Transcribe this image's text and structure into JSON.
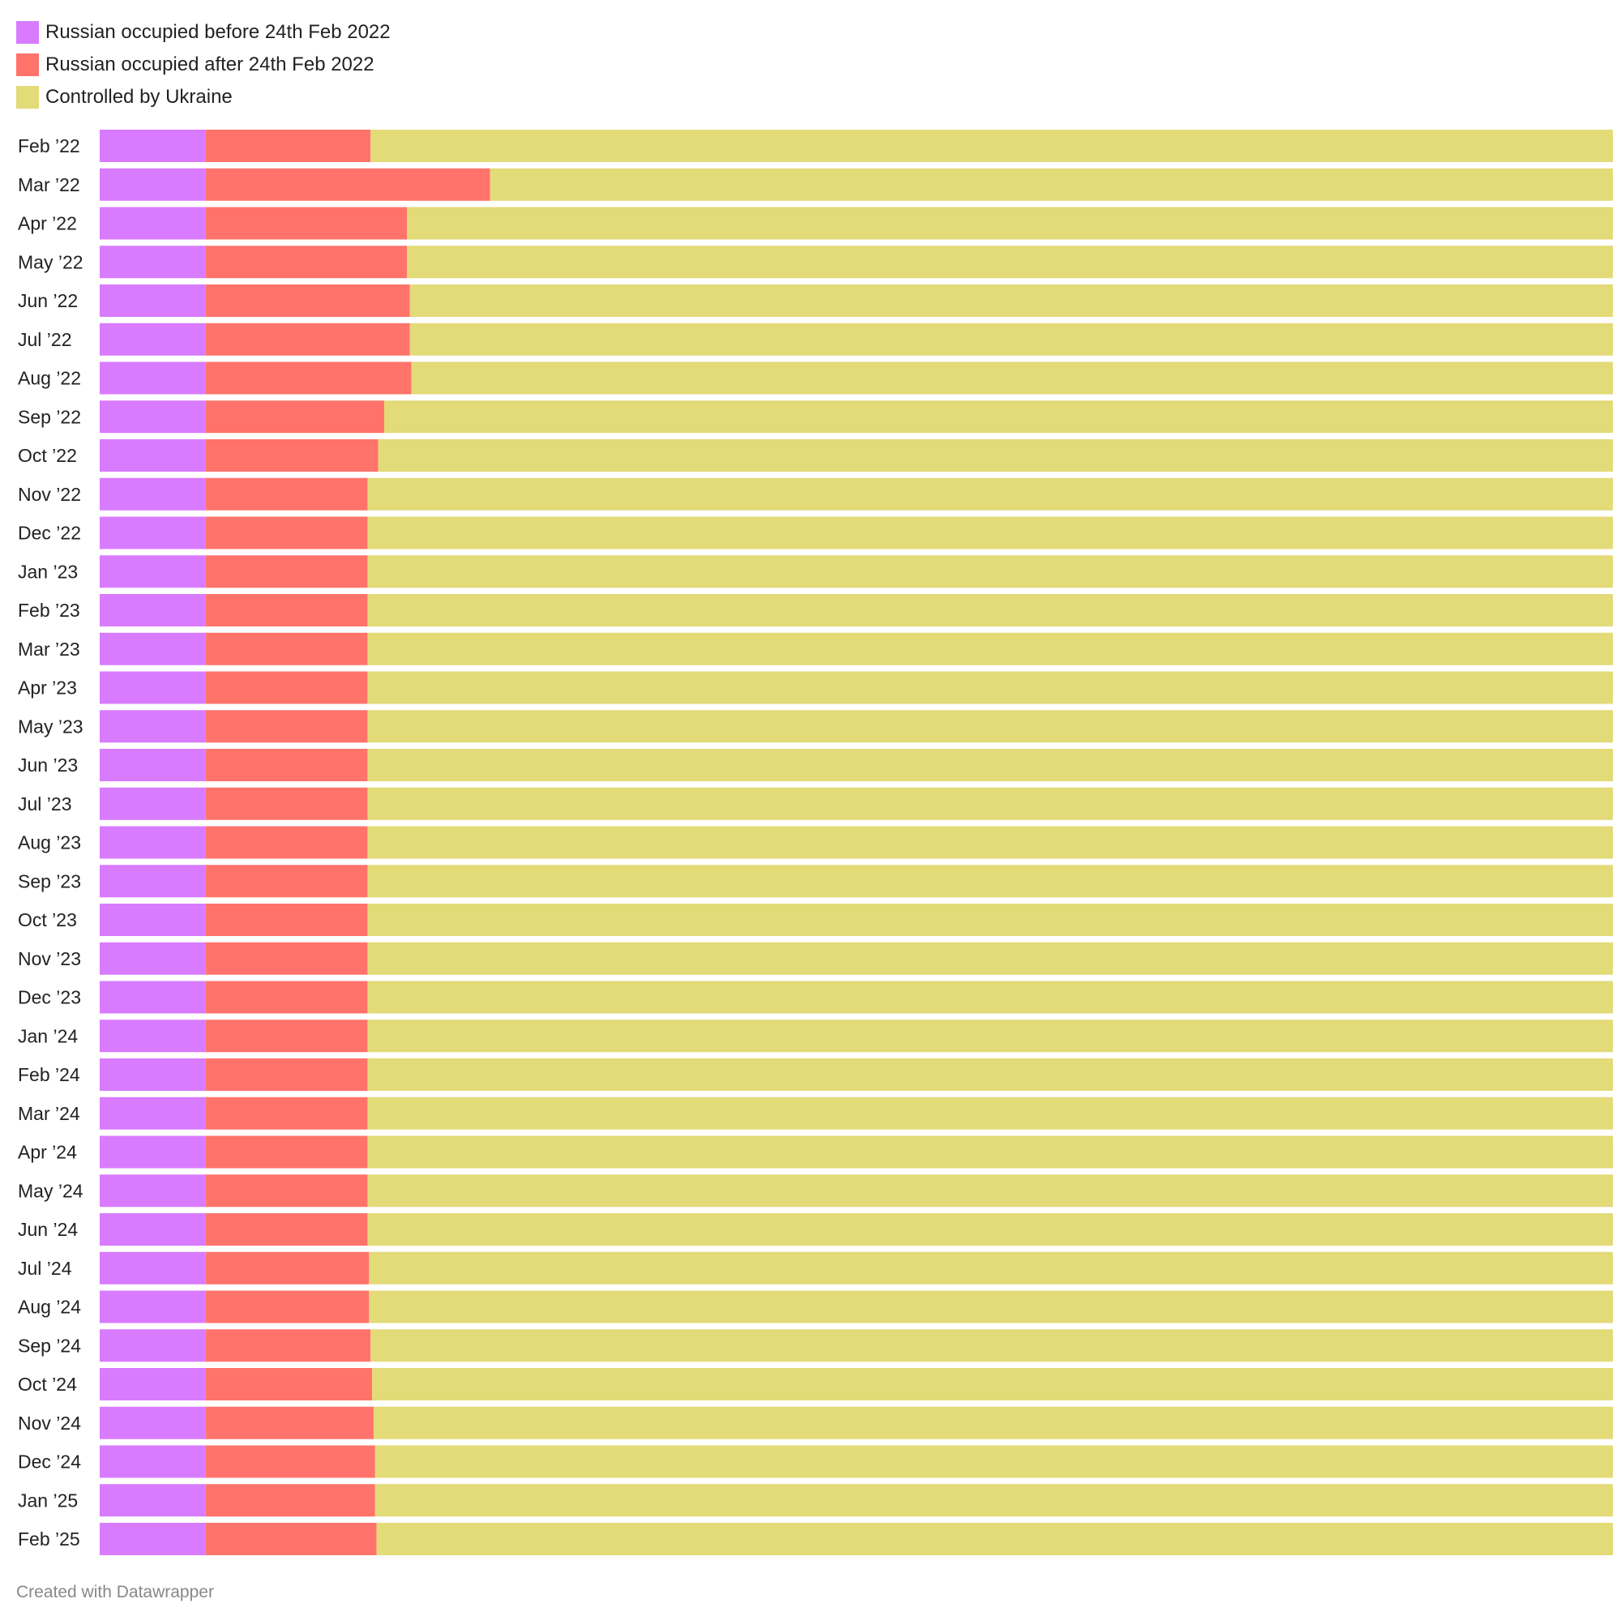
{
  "colors": {
    "before": "#d97bff",
    "after": "#ff736b",
    "ukraine": "#e3da78",
    "label_text": "#222222",
    "credit_text": "#888888"
  },
  "legend": [
    {
      "label": "Russian occupied before 24th Feb 2022",
      "color_key": "before"
    },
    {
      "label": "Russian occupied after 24th Feb 2022",
      "color_key": "after"
    },
    {
      "label": "Controlled by Ukraine",
      "color_key": "ukraine"
    }
  ],
  "credit": "Created with Datawrapper",
  "chart_data": {
    "type": "bar",
    "stacked": true,
    "orientation": "horizontal",
    "normalized": "percent",
    "categories": [
      "Feb ’22",
      "Mar ’22",
      "Apr ’22",
      "May ’22",
      "Jun ’22",
      "Jul ’22",
      "Aug ’22",
      "Sep ’22",
      "Oct ’22",
      "Nov ’22",
      "Dec ’22",
      "Jan ’23",
      "Feb ’23",
      "Mar ’23",
      "Apr ’23",
      "May ’23",
      "Jun ’23",
      "Jul ’23",
      "Aug ’23",
      "Sep ’23",
      "Oct ’23",
      "Nov ’23",
      "Dec ’23",
      "Jan ’24",
      "Feb ’24",
      "Mar ’24",
      "Apr ’24",
      "May ’24",
      "Jun ’24",
      "Jul ’24",
      "Aug ’24",
      "Sep ’24",
      "Oct ’24",
      "Nov ’24",
      "Dec ’24",
      "Jan ’25",
      "Feb ’25"
    ],
    "series": [
      {
        "name": "Russian occupied before 24th Feb 2022",
        "color_key": "before",
        "values": [
          7.0,
          7.0,
          7.0,
          7.0,
          7.0,
          7.0,
          7.0,
          7.0,
          7.0,
          7.0,
          7.0,
          7.0,
          7.0,
          7.0,
          7.0,
          7.0,
          7.0,
          7.0,
          7.0,
          7.0,
          7.0,
          7.0,
          7.0,
          7.0,
          7.0,
          7.0,
          7.0,
          7.0,
          7.0,
          7.0,
          7.0,
          7.0,
          7.0,
          7.0,
          7.0,
          7.0,
          7.0
        ]
      },
      {
        "name": "Russian occupied after 24th Feb 2022",
        "color_key": "after",
        "values": [
          10.9,
          18.8,
          13.3,
          13.3,
          13.5,
          13.5,
          13.6,
          11.8,
          11.4,
          10.7,
          10.7,
          10.7,
          10.7,
          10.7,
          10.7,
          10.7,
          10.7,
          10.7,
          10.7,
          10.7,
          10.7,
          10.7,
          10.7,
          10.7,
          10.7,
          10.7,
          10.7,
          10.7,
          10.7,
          10.8,
          10.8,
          10.9,
          11.0,
          11.1,
          11.2,
          11.2,
          11.3
        ]
      },
      {
        "name": "Controlled by Ukraine",
        "color_key": "ukraine",
        "values": [
          82.1,
          74.2,
          79.7,
          79.7,
          79.5,
          79.5,
          79.4,
          81.2,
          81.6,
          82.3,
          82.3,
          82.3,
          82.3,
          82.3,
          82.3,
          82.3,
          82.3,
          82.3,
          82.3,
          82.3,
          82.3,
          82.3,
          82.3,
          82.3,
          82.3,
          82.3,
          82.3,
          82.3,
          82.3,
          82.2,
          82.2,
          82.1,
          82.0,
          81.9,
          81.8,
          81.8,
          81.7
        ]
      }
    ],
    "xlim": [
      0,
      100
    ],
    "legend_position": "top-left",
    "grid": false
  }
}
